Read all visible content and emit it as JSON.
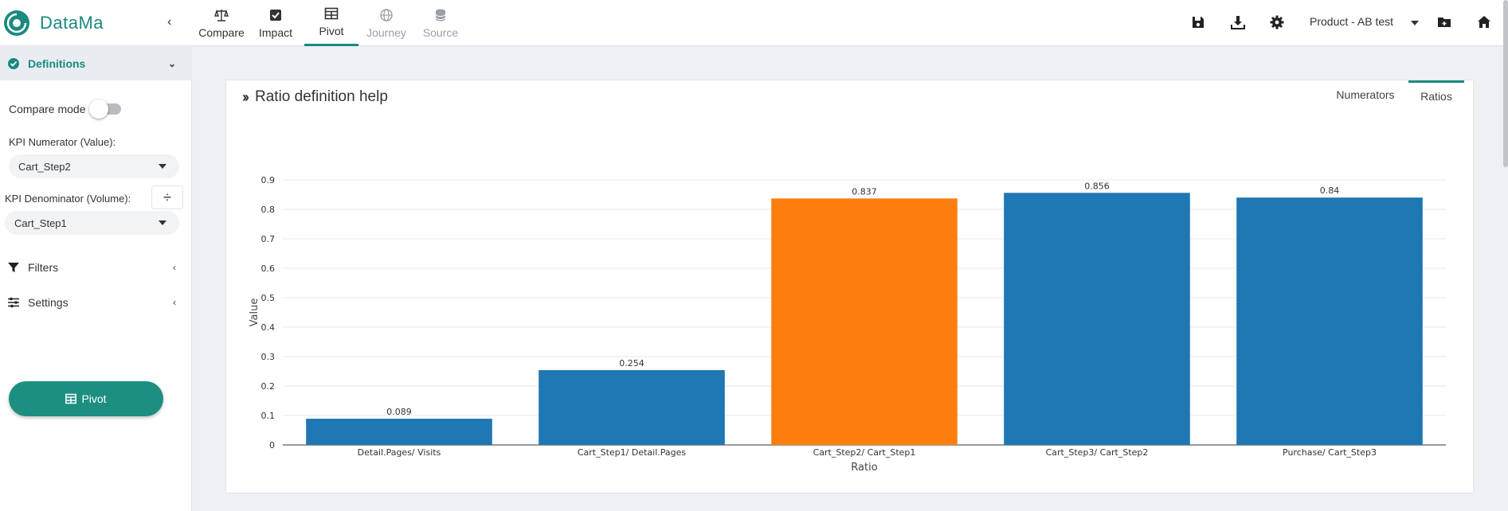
{
  "app": {
    "name": "DataMa"
  },
  "nav": {
    "tabs": [
      {
        "label": "Compare",
        "icon": "balance-scale-icon",
        "state": "normal"
      },
      {
        "label": "Impact",
        "icon": "checkbox-icon",
        "state": "normal"
      },
      {
        "label": "Pivot",
        "icon": "table-icon",
        "state": "active"
      },
      {
        "label": "Journey",
        "icon": "globe-icon",
        "state": "disabled"
      },
      {
        "label": "Source",
        "icon": "database-icon",
        "state": "disabled"
      }
    ]
  },
  "toolbar": {
    "project": "Product - AB test",
    "icons": [
      "save-icon",
      "download-icon",
      "gear-icon",
      "folder-icon",
      "home-icon"
    ]
  },
  "sidebar": {
    "definitions": {
      "title": "Definitions",
      "compare_mode_label": "Compare mode",
      "compare_mode_on": false,
      "numerator_label": "KPI Numerator (Value):",
      "numerator_value": "Cart_Step2",
      "denominator_label": "KPI Denominator (Volume):",
      "denominator_value": "Cart_Step1",
      "divide_symbol": "÷"
    },
    "filters_label": "Filters",
    "settings_label": "Settings",
    "pivot_button": "Pivot"
  },
  "card": {
    "title": "Ratio definition help",
    "tabs": [
      {
        "label": "Numerators",
        "active": false
      },
      {
        "label": "Ratios",
        "active": true
      }
    ]
  },
  "chart_data": {
    "type": "bar",
    "categories": [
      "Detail.Pages/ Visits",
      "Cart_Step1/ Detail.Pages",
      "Cart_Step2/ Cart_Step1",
      "Cart_Step3/ Cart_Step2",
      "Purchase/ Cart_Step3"
    ],
    "values": [
      0.089,
      0.254,
      0.837,
      0.856,
      0.84
    ],
    "value_labels": [
      "0.089",
      "0.254",
      "0.837",
      "0.856",
      "0.84"
    ],
    "highlight_index": 2,
    "colors": {
      "default": "#1f77b4",
      "highlight": "#ff7f0e"
    },
    "xlabel": "Ratio",
    "ylabel": "Value",
    "ylim": [
      0,
      0.9
    ],
    "yticks": [
      "0",
      "0.1",
      "0.2",
      "0.3",
      "0.4",
      "0.5",
      "0.6",
      "0.7",
      "0.8",
      "0.9"
    ],
    "grid": true
  }
}
